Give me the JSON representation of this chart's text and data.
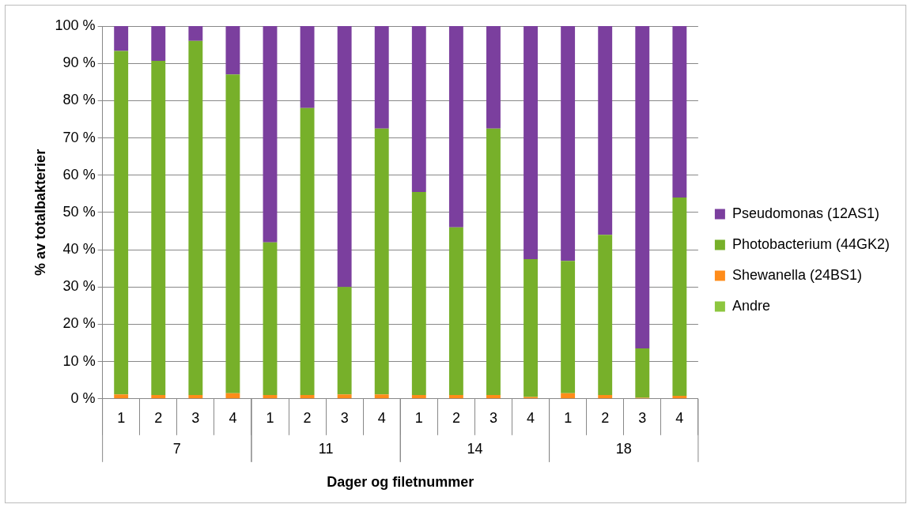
{
  "chart_data": {
    "type": "bar",
    "stacked": true,
    "xlabel": "Dager og filetnummer",
    "ylabel": "% av totalbakterier",
    "categories": [
      "1",
      "2",
      "3",
      "4",
      "1",
      "2",
      "3",
      "4",
      "1",
      "2",
      "3",
      "4",
      "1",
      "2",
      "3",
      "4"
    ],
    "annotations": [
      "7",
      "11",
      "14",
      "18"
    ],
    "series": [
      {
        "name": "Andre",
        "color": "#8dc63f",
        "values": [
          0,
          0,
          0,
          0,
          0,
          0,
          0,
          0,
          0,
          0,
          0,
          0,
          0,
          0,
          0,
          0
        ]
      },
      {
        "name": "Shewanella (24BS1)",
        "color": "#ff8c1a",
        "values": [
          1.2,
          1,
          1,
          1.5,
          1,
          1,
          1.2,
          1.2,
          1,
          1,
          1,
          0.5,
          1.5,
          1,
          0.3,
          0.8
        ]
      },
      {
        "name": "Photobacterium (44GK2)",
        "color": "#77b02a",
        "values": [
          92.1,
          89.7,
          95,
          85.5,
          41,
          77,
          28.8,
          71.3,
          54.5,
          45,
          71.5,
          37,
          35.5,
          43,
          13.2,
          53.2
        ]
      },
      {
        "name": "Pseudomonas (12AS1)",
        "color": "#7b3f9e",
        "values": [
          6.7,
          9.3,
          4,
          13,
          58,
          22,
          70,
          27.5,
          44.5,
          54,
          27.5,
          62.5,
          63,
          56,
          86.5,
          46
        ]
      }
    ],
    "ylim": [
      0,
      100
    ],
    "yticks": [
      {
        "value": 0,
        "label": "0 %"
      },
      {
        "value": 10,
        "label": "10 %"
      },
      {
        "value": 20,
        "label": "20 %"
      },
      {
        "value": 30,
        "label": "30 %"
      },
      {
        "value": 40,
        "label": "40 %"
      },
      {
        "value": 50,
        "label": "50 %"
      },
      {
        "value": 60,
        "label": "60 %"
      },
      {
        "value": 70,
        "label": "70 %"
      },
      {
        "value": 80,
        "label": "80 %"
      },
      {
        "value": 90,
        "label": "90 %"
      },
      {
        "value": 100,
        "label": "100 %"
      }
    ],
    "grid": "y",
    "legend": "right"
  }
}
